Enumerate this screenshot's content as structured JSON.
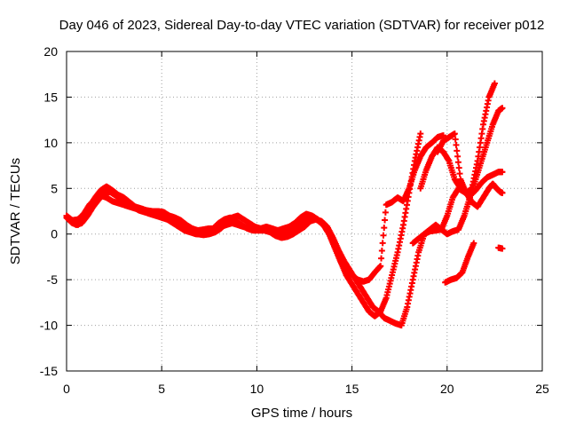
{
  "chart_data": {
    "type": "scatter",
    "title": "Day 046 of 2023, Sidereal Day-to-day VTEC variation (SDTVAR) for receiver p012",
    "xlabel": "GPS time / hours",
    "ylabel": "SDTVAR / TECUs",
    "xlim": [
      0,
      25
    ],
    "ylim": [
      -15,
      20
    ],
    "xticks": [
      "0",
      "5",
      "10",
      "15",
      "20",
      "25"
    ],
    "yticks": [
      "-15",
      "-10",
      "-5",
      "0",
      "5",
      "10",
      "15",
      "20"
    ],
    "grid": true,
    "marker": "+",
    "color": "#ff0000",
    "series": [
      {
        "name": "track-1",
        "x": [
          0.0,
          0.3,
          0.6,
          0.9,
          1.2,
          1.5,
          1.8,
          2.1,
          2.4,
          2.7,
          3.0,
          3.3,
          3.6,
          3.9,
          4.2,
          4.5,
          4.8,
          5.1,
          5.4,
          5.7,
          6.0,
          6.3,
          6.6,
          6.9,
          7.2,
          7.5,
          7.8,
          8.1,
          8.4,
          8.7,
          9.0,
          9.3,
          9.6,
          9.9,
          10.2,
          10.5,
          10.8,
          11.1,
          11.4,
          11.7,
          12.0,
          12.3,
          12.6,
          12.9,
          13.2,
          13.5,
          13.8,
          14.1,
          14.4,
          14.7,
          15.0,
          15.3,
          15.6,
          15.9,
          16.2,
          16.5,
          16.8,
          17.1,
          17.4,
          17.7,
          18.0,
          18.3,
          18.6,
          18.9,
          19.2,
          19.5,
          19.8
        ],
        "y": [
          1.8,
          1.2,
          1.0,
          1.8,
          3.0,
          4.0,
          4.8,
          5.2,
          4.8,
          4.3,
          4.0,
          3.5,
          3.0,
          2.8,
          2.6,
          2.5,
          2.5,
          2.4,
          2.0,
          1.8,
          1.5,
          1.0,
          0.6,
          0.4,
          0.5,
          0.6,
          0.6,
          0.8,
          1.0,
          1.2,
          1.0,
          0.8,
          0.6,
          0.5,
          0.6,
          0.8,
          0.6,
          0.4,
          0.6,
          0.8,
          1.2,
          1.8,
          2.2,
          2.0,
          1.6,
          1.0,
          0.0,
          -1.5,
          -3.0,
          -4.0,
          -4.5,
          -5.0,
          -5.2,
          -5.0,
          -4.2,
          -3.5,
          3.2,
          3.5,
          4.0,
          3.6,
          5.0,
          7.0,
          8.5,
          9.5,
          10.0,
          10.6,
          10.8
        ]
      },
      {
        "name": "track-2",
        "x": [
          0.0,
          0.3,
          0.6,
          0.9,
          1.2,
          1.5,
          1.8,
          2.1,
          2.4,
          2.7,
          3.0,
          3.3,
          3.6,
          3.9,
          4.2,
          4.5,
          4.8,
          5.1,
          5.4,
          5.7,
          6.0,
          6.3,
          6.6,
          6.9,
          7.2,
          7.5,
          7.8,
          8.1,
          8.4,
          8.7,
          9.0,
          9.3,
          9.6,
          9.9,
          10.2,
          10.5,
          10.8,
          11.1,
          11.4,
          11.7,
          12.0,
          12.3,
          12.6,
          12.9,
          13.2,
          13.5,
          13.8,
          14.1,
          14.4,
          14.7,
          15.0,
          15.3,
          15.6,
          15.9,
          16.2,
          16.5,
          16.8,
          17.1,
          17.4,
          17.7,
          18.0,
          18.3,
          18.6
        ],
        "y": [
          2.0,
          1.5,
          1.6,
          2.2,
          3.2,
          3.8,
          4.2,
          4.0,
          3.6,
          3.4,
          3.2,
          3.0,
          2.8,
          2.6,
          2.4,
          2.2,
          2.0,
          1.8,
          1.5,
          1.2,
          1.0,
          0.5,
          0.2,
          0.0,
          -0.1,
          0.0,
          0.2,
          0.6,
          1.2,
          1.8,
          2.0,
          1.6,
          1.2,
          0.8,
          0.6,
          0.4,
          0.2,
          0.0,
          0.0,
          0.2,
          0.6,
          1.2,
          1.6,
          1.8,
          1.5,
          1.0,
          0.0,
          -1.5,
          -3.0,
          -4.5,
          -5.5,
          -6.5,
          -7.5,
          -8.5,
          -9.0,
          -8.5,
          -7.0,
          -4.5,
          -2.0,
          1.0,
          4.5,
          8.0,
          11.0
        ]
      },
      {
        "name": "track-3",
        "x": [
          0.2,
          0.5,
          0.8,
          1.1,
          1.4,
          1.7,
          2.0,
          2.3,
          2.6,
          2.9,
          3.2,
          3.5,
          3.8,
          4.1,
          4.4,
          4.7,
          5.0,
          5.3,
          5.6,
          5.9,
          6.2,
          6.5,
          6.8,
          7.1,
          7.4,
          7.7,
          8.0,
          8.3,
          8.6,
          8.9,
          9.2,
          9.5,
          9.8,
          10.1,
          10.4,
          10.7,
          11.0,
          11.3,
          11.6,
          11.9,
          12.2,
          12.5,
          12.8,
          13.1,
          13.4,
          13.7,
          14.0,
          14.3,
          14.6,
          14.9,
          15.2,
          15.5,
          15.8,
          16.1,
          16.4,
          16.7,
          17.0,
          17.3,
          17.6,
          17.9,
          18.2,
          18.5,
          18.8,
          19.1,
          19.4,
          19.7,
          20.0,
          20.3,
          20.6,
          20.9,
          21.2,
          21.5,
          21.8,
          22.1,
          22.4,
          22.7,
          22.9
        ],
        "y": [
          1.5,
          1.0,
          1.2,
          2.0,
          3.0,
          3.8,
          4.5,
          4.6,
          4.2,
          3.8,
          3.4,
          3.0,
          2.6,
          2.4,
          2.2,
          2.0,
          1.8,
          1.6,
          1.2,
          0.8,
          0.4,
          0.2,
          0.0,
          0.0,
          0.3,
          0.6,
          1.2,
          1.6,
          1.8,
          1.4,
          1.0,
          0.6,
          0.4,
          0.4,
          0.4,
          0.2,
          -0.2,
          -0.4,
          -0.3,
          0.0,
          0.4,
          0.8,
          1.4,
          1.6,
          1.4,
          0.8,
          -0.4,
          -1.8,
          -3.0,
          -4.0,
          -5.0,
          -6.0,
          -7.0,
          -8.0,
          -8.5,
          -9.2,
          -9.5,
          -9.8,
          -10.0,
          -8.0,
          -5.0,
          -2.0,
          0.0,
          0.5,
          1.0,
          0.5,
          0.0,
          0.3,
          0.5,
          2.0,
          4.0,
          6.0,
          8.0,
          10.0,
          12.0,
          13.5,
          13.8
        ]
      },
      {
        "name": "track-4",
        "x": [
          18.2,
          18.5,
          18.8,
          19.1,
          19.4,
          19.7,
          20.0,
          20.3,
          20.6,
          20.9,
          21.2,
          21.5,
          21.8,
          22.1,
          22.4,
          22.7,
          22.9
        ],
        "y": [
          -1.0,
          -0.5,
          0.0,
          0.3,
          0.4,
          0.5,
          2.0,
          4.0,
          5.0,
          4.6,
          4.2,
          4.8,
          5.6,
          6.2,
          6.5,
          6.8,
          6.8
        ]
      },
      {
        "name": "track-5",
        "x": [
          18.6,
          18.9,
          19.2,
          19.5,
          19.8,
          20.1,
          20.4,
          20.7,
          21.0,
          21.3,
          21.6,
          21.9,
          22.2,
          22.4,
          22.6,
          22.8,
          22.9
        ],
        "y": [
          5.0,
          7.0,
          8.5,
          9.5,
          9.0,
          8.0,
          6.0,
          5.0,
          4.5,
          3.5,
          3.0,
          4.0,
          5.0,
          5.5,
          5.0,
          4.6,
          4.5
        ]
      },
      {
        "name": "track-6",
        "x": [
          19.9,
          20.2,
          20.5,
          20.8,
          21.1,
          21.4
        ],
        "y": [
          -5.3,
          -5.0,
          -4.8,
          -4.2,
          -2.5,
          -1.0
        ]
      },
      {
        "name": "track-7",
        "x": [
          19.5,
          19.8,
          20.1,
          20.4,
          20.7,
          21.0,
          21.3,
          21.6,
          21.9,
          22.2,
          22.5
        ],
        "y": [
          9.0,
          10.2,
          10.6,
          11.0,
          6.0,
          4.5,
          5.0,
          8.0,
          12.0,
          15.0,
          16.5
        ]
      },
      {
        "name": "track-8",
        "x": [
          22.7,
          22.9
        ],
        "y": [
          -1.5,
          -1.6
        ]
      }
    ]
  }
}
